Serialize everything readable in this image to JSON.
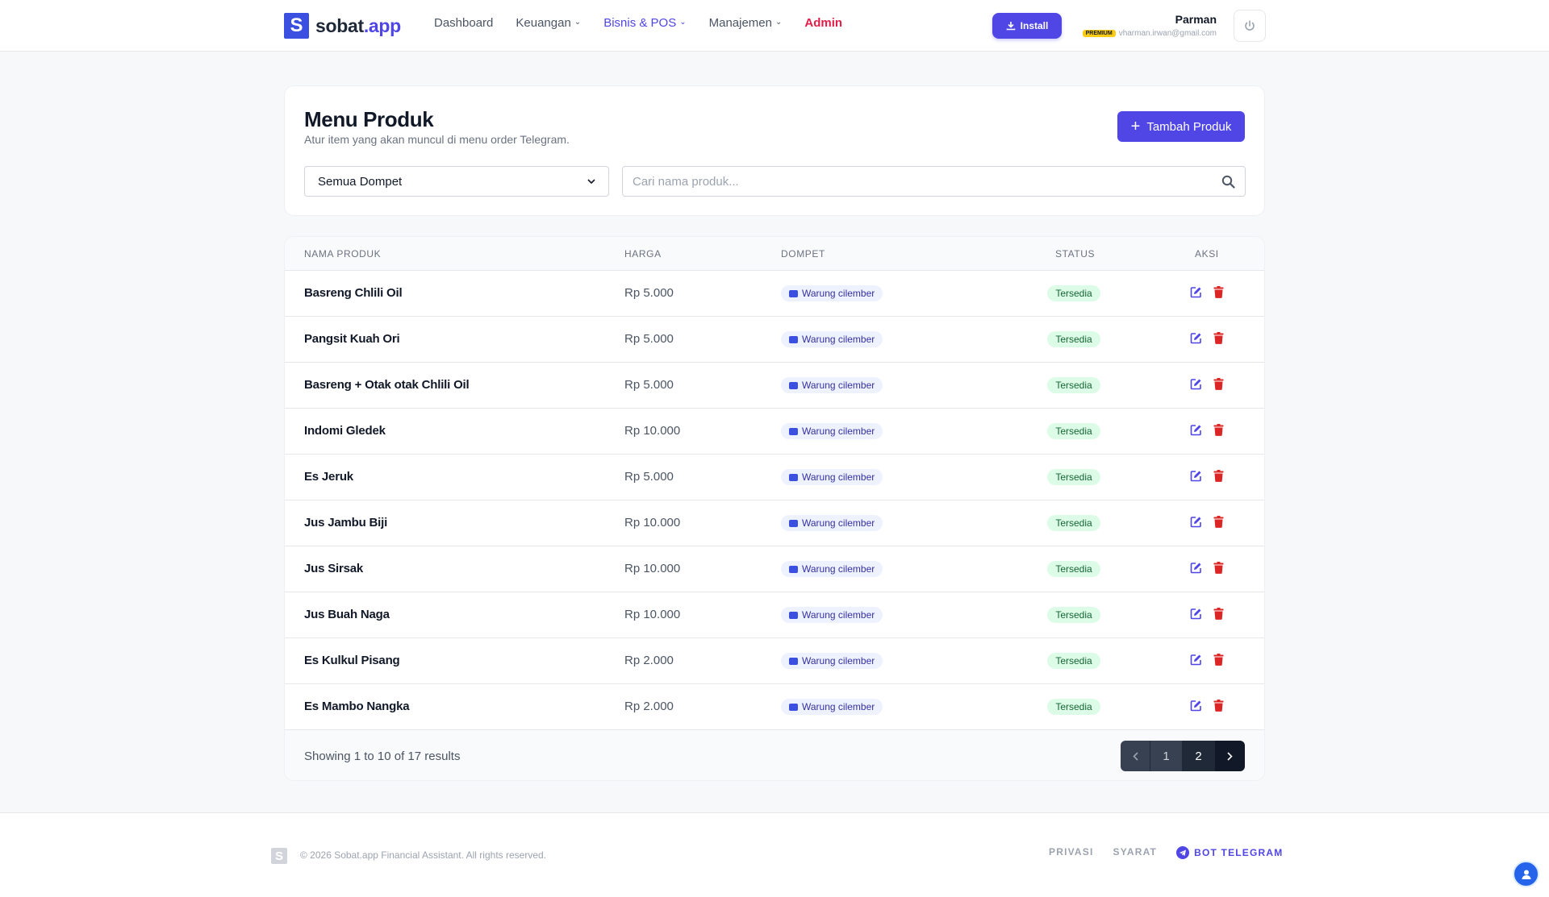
{
  "brand": {
    "logo_letter": "S",
    "name_main": "sobat",
    "name_accent": ".app",
    "brand_color": "#3b4fe0",
    "accent_color": "#4f46e5"
  },
  "nav": {
    "items": [
      {
        "label": "Dashboard",
        "has_dropdown": false
      },
      {
        "label": "Keuangan",
        "has_dropdown": true
      },
      {
        "label": "Bisnis & POS",
        "has_dropdown": true,
        "active": true
      },
      {
        "label": "Manajemen",
        "has_dropdown": true
      },
      {
        "label": "Admin",
        "has_dropdown": false
      }
    ],
    "install_label": "Install"
  },
  "user": {
    "name": "Parman",
    "plan_badge": "PREMIUM",
    "email": "vharman.irwan@gmail.com"
  },
  "page": {
    "title": "Menu Produk",
    "subtitle": "Atur item yang akan muncul di menu order Telegram.",
    "add_button_label": "Tambah Produk",
    "wallet_filter_value": "Semua Dompet",
    "search_placeholder": "Cari nama produk..."
  },
  "table": {
    "columns": {
      "name": "NAMA PRODUK",
      "price": "HARGA",
      "wallet": "DOMPET",
      "status": "STATUS",
      "actions": "AKSI"
    },
    "rows": [
      {
        "name": "Basreng Chlili Oil",
        "price": "Rp 5.000",
        "wallet": "Warung cilember",
        "status": "Tersedia"
      },
      {
        "name": "Pangsit Kuah Ori",
        "price": "Rp 5.000",
        "wallet": "Warung cilember",
        "status": "Tersedia"
      },
      {
        "name": "Basreng + Otak otak Chlili Oil",
        "price": "Rp 5.000",
        "wallet": "Warung cilember",
        "status": "Tersedia"
      },
      {
        "name": "Indomi Gledek",
        "price": "Rp 10.000",
        "wallet": "Warung cilember",
        "status": "Tersedia"
      },
      {
        "name": "Es Jeruk",
        "price": "Rp 5.000",
        "wallet": "Warung cilember",
        "status": "Tersedia"
      },
      {
        "name": "Jus Jambu Biji",
        "price": "Rp 10.000",
        "wallet": "Warung cilember",
        "status": "Tersedia"
      },
      {
        "name": "Jus Sirsak",
        "price": "Rp 10.000",
        "wallet": "Warung cilember",
        "status": "Tersedia"
      },
      {
        "name": "Jus Buah Naga",
        "price": "Rp 10.000",
        "wallet": "Warung cilember",
        "status": "Tersedia"
      },
      {
        "name": "Es Kulkul Pisang",
        "price": "Rp 2.000",
        "wallet": "Warung cilember",
        "status": "Tersedia"
      },
      {
        "name": "Es Mambo Nangka",
        "price": "Rp 2.000",
        "wallet": "Warung cilember",
        "status": "Tersedia"
      }
    ],
    "results_text": "Showing 1 to 10 of 17 results",
    "pages": [
      "1",
      "2"
    ]
  },
  "footer": {
    "logo_letter": "S",
    "copyright": "© 2026 Sobat.app Financial Assistant. All rights reserved.",
    "links": {
      "privacy": "PRIVASI",
      "terms": "SYARAT",
      "telegram": "BOT TELEGRAM"
    }
  },
  "icons": {
    "edit": "edit-icon",
    "delete": "trash-icon",
    "search": "search-icon",
    "power": "power-icon",
    "download": "download-icon",
    "telegram": "telegram-icon"
  },
  "colors": {
    "danger": "#dc2626",
    "success_bg": "#dcfce7",
    "success_text": "#166534",
    "wallet_bg": "#eef2ff"
  }
}
